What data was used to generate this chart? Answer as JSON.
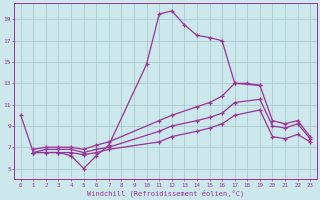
{
  "bg_color": "#cce8ec",
  "grid_color": "#aacccc",
  "line_color": "#993399",
  "xlabel": "Windchill (Refroidissement éolien,°C)",
  "x_min": -0.5,
  "x_max": 23.5,
  "y_min": 4.0,
  "y_max": 20.5,
  "yticks": [
    5,
    7,
    9,
    11,
    13,
    15,
    17,
    19
  ],
  "xtick_labels": [
    "0",
    "1",
    "2",
    "3",
    "4",
    "5",
    "6",
    "7",
    "8",
    "9",
    "10",
    "11",
    "12",
    "13",
    "14",
    "15",
    "16",
    "17",
    "18",
    "19",
    "20",
    "21",
    "22",
    "23"
  ],
  "s1x": [
    0,
    1,
    2,
    3,
    4,
    5,
    6,
    7,
    10,
    11,
    12,
    13,
    14,
    15,
    16,
    17,
    18,
    19
  ],
  "s1y": [
    10.0,
    6.5,
    6.5,
    6.5,
    6.2,
    5.0,
    6.2,
    7.2,
    14.8,
    19.5,
    19.8,
    18.5,
    17.5,
    17.3,
    17.0,
    13.0,
    13.0,
    12.8
  ],
  "s2x": [
    1,
    2,
    3,
    4,
    5,
    6,
    7,
    11,
    12,
    14,
    15,
    16,
    17,
    19,
    20,
    21,
    22,
    23
  ],
  "s2y": [
    6.8,
    7.0,
    7.0,
    7.0,
    6.8,
    7.2,
    7.5,
    9.5,
    10.0,
    10.8,
    11.2,
    11.8,
    13.0,
    12.8,
    9.5,
    9.2,
    9.5,
    8.0
  ],
  "s3x": [
    1,
    2,
    3,
    4,
    5,
    6,
    7,
    11,
    12,
    14,
    15,
    16,
    17,
    19,
    20,
    21,
    22,
    23
  ],
  "s3y": [
    6.5,
    6.8,
    6.8,
    6.8,
    6.5,
    6.8,
    7.0,
    8.5,
    9.0,
    9.5,
    9.8,
    10.2,
    11.2,
    11.5,
    9.0,
    8.8,
    9.2,
    7.8
  ],
  "s4x": [
    1,
    2,
    3,
    4,
    5,
    6,
    7,
    11,
    12,
    14,
    15,
    16,
    17,
    19,
    20,
    21,
    22,
    23
  ],
  "s4y": [
    6.5,
    6.5,
    6.5,
    6.5,
    6.3,
    6.5,
    6.8,
    7.5,
    8.0,
    8.5,
    8.8,
    9.2,
    10.0,
    10.5,
    8.0,
    7.8,
    8.2,
    7.5
  ]
}
